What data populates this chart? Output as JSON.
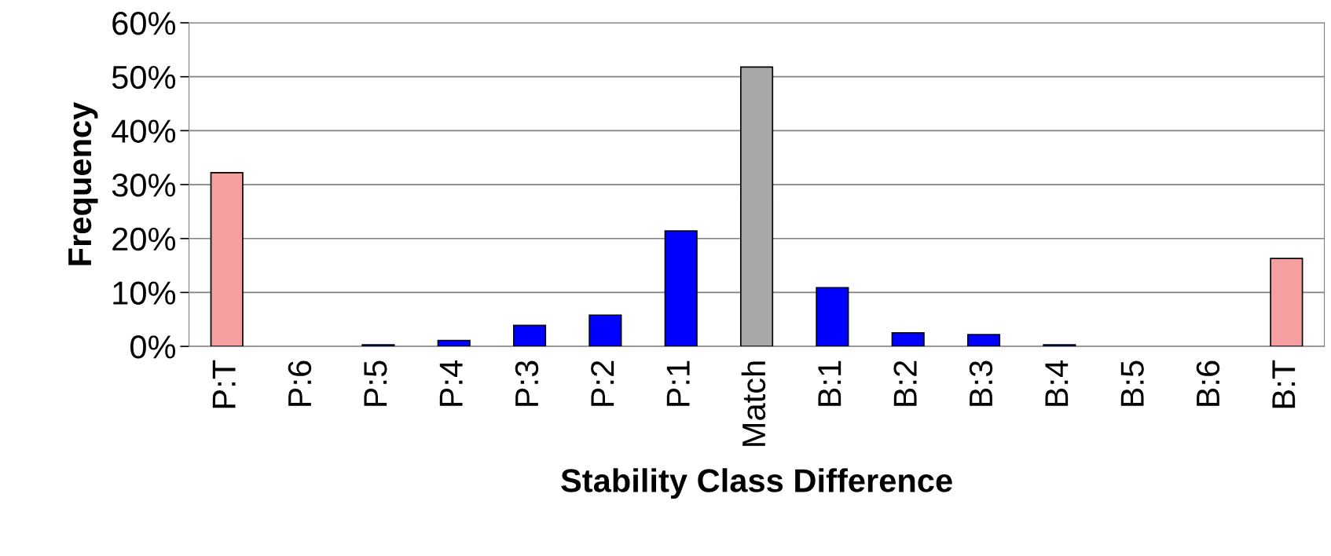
{
  "chart_data": {
    "type": "bar",
    "xlabel": "Stability Class Difference",
    "ylabel": "Frequency",
    "categories": [
      "P:T",
      "P:6",
      "P:5",
      "P:4",
      "P:3",
      "P:2",
      "P:1",
      "Match",
      "B:1",
      "B:2",
      "B:3",
      "B:4",
      "B:5",
      "B:6",
      "B:T"
    ],
    "values": [
      32.2,
      0,
      0.3,
      1.1,
      3.9,
      5.8,
      21.4,
      51.8,
      10.9,
      2.5,
      2.2,
      0.3,
      0,
      0,
      16.3
    ],
    "colors": [
      "#f4a0a0",
      "#0000ff",
      "#0000ff",
      "#0000ff",
      "#0000ff",
      "#0000ff",
      "#0000ff",
      "#a8a8a8",
      "#0000ff",
      "#0000ff",
      "#0000ff",
      "#0000ff",
      "#0000ff",
      "#0000ff",
      "#f4a0a0"
    ],
    "ylim": [
      0,
      60
    ],
    "yticks": [
      {
        "value": 0,
        "label": "0%"
      },
      {
        "value": 10,
        "label": "10%"
      },
      {
        "value": 20,
        "label": "20%"
      },
      {
        "value": 30,
        "label": "30%"
      },
      {
        "value": 40,
        "label": "40%"
      },
      {
        "value": 50,
        "label": "50%"
      },
      {
        "value": 60,
        "label": "60%"
      }
    ],
    "grid": "y"
  }
}
